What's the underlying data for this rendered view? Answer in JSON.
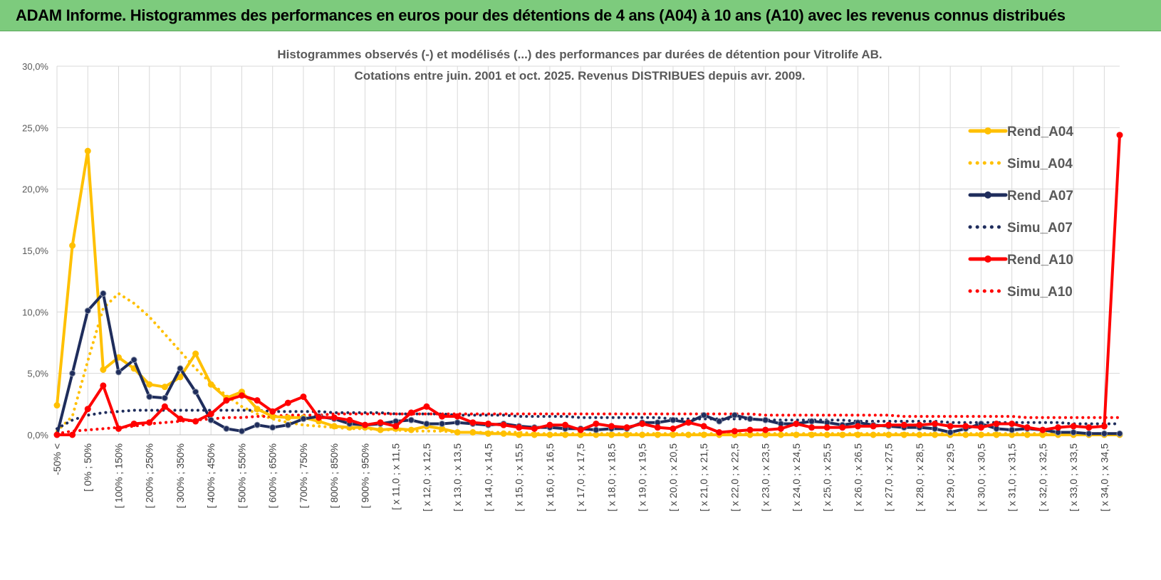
{
  "banner": {
    "title": "ADAM Informe. Histogrammes des performances en euros pour des détentions de 4 ans (A04) à 10 ans (A10) avec les revenus connus distribués"
  },
  "colors": {
    "banner_bg": "#7dcb7d",
    "Rend_A04": "#ffc000",
    "Simu_A04": "#ffc000",
    "Rend_A07": "#1f2d5c",
    "Simu_A07": "#1f2d5c",
    "Rend_A10": "#ff0000",
    "Simu_A10": "#ff0000"
  },
  "chart_data": {
    "type": "line",
    "title_lines": [
      "Histogrammes observés (-) et modélisés (...) des performances par durées de détention pour Vitrolife AB.",
      "Cotations entre juin. 2001 et oct. 2025. Revenus DISTRIBUES depuis avr. 2009."
    ],
    "ylim": [
      0,
      30
    ],
    "y_ticks": [
      "0,0%",
      "5,0%",
      "10,0%",
      "15,0%",
      "20,0%",
      "25,0%",
      "30,0%"
    ],
    "grid": true,
    "legend_position": "right",
    "x_tick_labels": [
      "-50% <",
      "[ 0% ; 50%",
      "[ 100% ; 150%",
      "[ 200% ; 250%",
      "[ 300% ; 350%",
      "[ 400% ; 450%",
      "[ 500% ; 550%",
      "[ 600% ; 650%",
      "[ 700% ; 750%",
      "[ 800% ; 850%",
      "[ 900% ; 950%",
      "[ x 11,0 ; x 11,5",
      "[ x 12,0 ; x 12,5",
      "[ x 13,0 ; x 13,5",
      "[ x 14,0 ; x 14,5",
      "[ x 15,0 ; x 15,5",
      "[ x 16,0 ; x 16,5",
      "[ x 17,0 ; x 17,5",
      "[ x 18,0 ; x 18,5",
      "[ x 19,0 ; x 19,5",
      "[ x 20,0 ; x 20,5",
      "[ x 21,0 ; x 21,5",
      "[ x 22,0 ; x 22,5",
      "[ x 23,0 ; x 23,5",
      "[ x 24,0 ; x 24,5",
      "[ x 25,0 ; x 25,5",
      "[ x 26,0 ; x 26,5",
      "[ x 27,0 ; x 27,5",
      "[ x 28,0 ; x 28,5",
      "[ x 29,0 ; x 29,5",
      "[ x 30,0 ; x 30,5",
      "[ x 31,0 ; x 31,5",
      "[ x 32,0 ; x 32,5",
      "[ x 33,0 ; x 33,5",
      "[ x 34,0 ; x 34,5"
    ],
    "n_points": 70,
    "series": [
      {
        "name": "Rend_A04",
        "style": "solid",
        "markers": true,
        "values": [
          2.4,
          15.4,
          23.1,
          5.3,
          6.3,
          5.4,
          4.1,
          3.9,
          4.7,
          6.6,
          4.1,
          3.0,
          3.5,
          2.1,
          1.5,
          1.4,
          1.4,
          1.1,
          0.7,
          0.6,
          0.6,
          0.4,
          0.5,
          0.4,
          0.7,
          0.5,
          0.2,
          0.2,
          0.1,
          0.1,
          0,
          0,
          0,
          0,
          0,
          0,
          0,
          0,
          0,
          0,
          0,
          0,
          0,
          0,
          0,
          0,
          0,
          0,
          0,
          0,
          0,
          0,
          0,
          0,
          0,
          0,
          0,
          0,
          0,
          0,
          0,
          0,
          0,
          0,
          0,
          0,
          0,
          0,
          0,
          0
        ]
      },
      {
        "name": "Simu_A04",
        "style": "dotted",
        "markers": false,
        "values": [
          0.3,
          1.5,
          6.0,
          10.3,
          11.5,
          10.7,
          9.6,
          8.2,
          6.8,
          5.4,
          4.2,
          3.2,
          2.3,
          1.7,
          1.3,
          1.0,
          0.8,
          0.7,
          0.6,
          0.5,
          0.5,
          0.4,
          0.4,
          0.3,
          0.3,
          0.3,
          0.2,
          0.2,
          0.2,
          0.2,
          0.2,
          0.1,
          0.1,
          0.1,
          0.1,
          0.1,
          0.1,
          0.1,
          0.1,
          0.1,
          0.1,
          0.1,
          0.1,
          0.1,
          0.1,
          0.1,
          0.1,
          0.1,
          0.1,
          0.1,
          0.1,
          0.1,
          0.1,
          0.1,
          0.1,
          0.1,
          0.1,
          0.1,
          0.1,
          0.1,
          0.1,
          0.1,
          0.1,
          0.1,
          0.1,
          0.1,
          0.1,
          0.1,
          0.1,
          0.1
        ]
      },
      {
        "name": "Rend_A07",
        "style": "solid",
        "markers": true,
        "values": [
          0,
          5.0,
          10.1,
          11.5,
          5.1,
          6.1,
          3.1,
          3.0,
          5.4,
          3.5,
          1.2,
          0.5,
          0.3,
          0.8,
          0.6,
          0.8,
          1.3,
          1.5,
          1.3,
          0.9,
          0.8,
          0.9,
          1.1,
          1.2,
          0.9,
          0.9,
          1.0,
          0.9,
          0.8,
          0.9,
          0.7,
          0.6,
          0.6,
          0.5,
          0.5,
          0.4,
          0.5,
          0.5,
          1.0,
          1.0,
          1.2,
          1.0,
          1.6,
          1.1,
          1.6,
          1.3,
          1.2,
          0.9,
          0.9,
          1.1,
          1.0,
          0.8,
          1.0,
          0.8,
          0.7,
          0.6,
          0.6,
          0.5,
          0.2,
          0.5,
          0.9,
          0.5,
          0.4,
          0.5,
          0.4,
          0.2,
          0.2,
          0.1,
          0.1,
          0.1
        ]
      },
      {
        "name": "Simu_A07",
        "style": "dotted",
        "markers": false,
        "values": [
          0.5,
          1.2,
          1.6,
          1.8,
          1.9,
          2.0,
          2.0,
          2.0,
          2.0,
          2.0,
          2.0,
          2.0,
          2.0,
          2.0,
          1.9,
          1.9,
          1.9,
          1.9,
          1.8,
          1.8,
          1.8,
          1.8,
          1.7,
          1.7,
          1.7,
          1.7,
          1.6,
          1.6,
          1.6,
          1.6,
          1.5,
          1.5,
          1.5,
          1.5,
          1.4,
          1.4,
          1.4,
          1.4,
          1.4,
          1.4,
          1.3,
          1.3,
          1.3,
          1.3,
          1.3,
          1.3,
          1.2,
          1.2,
          1.2,
          1.2,
          1.2,
          1.2,
          1.1,
          1.1,
          1.1,
          1.1,
          1.1,
          1.1,
          1.0,
          1.0,
          1.0,
          1.0,
          1.0,
          1.0,
          1.0,
          1.0,
          0.9,
          0.9,
          0.9,
          0.9
        ]
      },
      {
        "name": "Rend_A10",
        "style": "solid",
        "markers": true,
        "values": [
          0,
          0,
          2.1,
          4.0,
          0.5,
          0.9,
          1.0,
          2.3,
          1.3,
          1.1,
          1.7,
          2.8,
          3.2,
          2.8,
          1.9,
          2.6,
          3.1,
          1.4,
          1.4,
          1.2,
          0.8,
          1.0,
          0.7,
          1.8,
          2.3,
          1.5,
          1.5,
          1.0,
          0.9,
          0.8,
          0.6,
          0.5,
          0.8,
          0.8,
          0.4,
          0.9,
          0.7,
          0.6,
          0.9,
          0.6,
          0.5,
          1.0,
          0.7,
          0.2,
          0.3,
          0.4,
          0.4,
          0.5,
          0.9,
          0.6,
          0.6,
          0.6,
          0.7,
          0.7,
          0.8,
          0.8,
          0.8,
          0.9,
          0.7,
          0.7,
          0.6,
          0.9,
          0.9,
          0.6,
          0.4,
          0.6,
          0.7,
          0.6,
          0.7,
          24.4
        ]
      },
      {
        "name": "Simu_A10",
        "style": "dotted",
        "markers": false,
        "values": [
          0.1,
          0.3,
          0.4,
          0.5,
          0.6,
          0.7,
          0.9,
          1.0,
          1.1,
          1.2,
          1.3,
          1.4,
          1.4,
          1.5,
          1.5,
          1.6,
          1.6,
          1.6,
          1.7,
          1.7,
          1.7,
          1.7,
          1.7,
          1.7,
          1.7,
          1.7,
          1.7,
          1.7,
          1.7,
          1.7,
          1.7,
          1.7,
          1.7,
          1.7,
          1.7,
          1.7,
          1.7,
          1.7,
          1.7,
          1.7,
          1.7,
          1.7,
          1.7,
          1.7,
          1.7,
          1.7,
          1.6,
          1.6,
          1.6,
          1.6,
          1.6,
          1.6,
          1.6,
          1.6,
          1.6,
          1.5,
          1.5,
          1.5,
          1.5,
          1.5,
          1.5,
          1.5,
          1.5,
          1.4,
          1.4,
          1.4,
          1.4,
          1.4,
          1.4,
          1.4
        ]
      }
    ]
  }
}
